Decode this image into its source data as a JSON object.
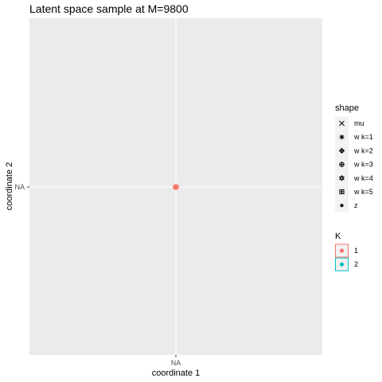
{
  "chart_data": {
    "type": "scatter",
    "title": "Latent space sample at M=9800",
    "xlabel": "coordinate 1",
    "ylabel": "coordinate 2",
    "x_ticks": [
      "NA"
    ],
    "y_ticks": [
      "NA"
    ],
    "grid": true,
    "points": [
      {
        "x": "NA",
        "y": "NA",
        "shape": "w k=1",
        "K": "1"
      },
      {
        "x": "NA",
        "y": "NA",
        "shape": "w k=2",
        "K": "1"
      },
      {
        "x": "NA",
        "y": "NA",
        "shape": "w k=4",
        "K": "1"
      }
    ],
    "legends": {
      "position": "right",
      "shape": {
        "title": "shape",
        "entries": [
          {
            "label": "mu",
            "symbol": "cross-icon"
          },
          {
            "label": "w k=1",
            "symbol": "asterisk-icon"
          },
          {
            "label": "w k=2",
            "symbol": "diamond-plus-icon"
          },
          {
            "label": "w k=3",
            "symbol": "circle-plus-icon"
          },
          {
            "label": "w k=4",
            "symbol": "star-of-david-icon"
          },
          {
            "label": "w k=5",
            "symbol": "square-plus-icon"
          },
          {
            "label": "z",
            "symbol": "dot-icon"
          }
        ]
      },
      "color": {
        "title": "K",
        "entries": [
          {
            "label": "1",
            "color": "#F8766D"
          },
          {
            "label": "2",
            "color": "#00BFC4"
          }
        ]
      }
    },
    "colors": {
      "panel": "#EBEBEB",
      "grid": "#FFFFFF",
      "k1": "#F8766D",
      "k2": "#00BFC4"
    }
  }
}
